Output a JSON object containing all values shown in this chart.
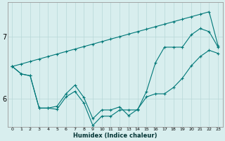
{
  "title": "",
  "xlabel": "Humidex (Indice chaleur)",
  "background_color": "#d8eeee",
  "grid_color": "#b8d8d8",
  "line_color": "#007878",
  "ylim": [
    5.55,
    7.55
  ],
  "yticks": [
    6,
    7
  ],
  "xlim": [
    -0.5,
    23.5
  ],
  "x_ticks": [
    0,
    1,
    2,
    3,
    4,
    5,
    6,
    7,
    8,
    9,
    10,
    11,
    12,
    13,
    14,
    15,
    16,
    17,
    18,
    19,
    20,
    21,
    22,
    23
  ],
  "line2": [
    6.52,
    6.4,
    6.37,
    5.85,
    5.85,
    5.88,
    6.08,
    6.22,
    6.02,
    5.68,
    5.82,
    5.82,
    5.87,
    5.73,
    5.83,
    6.03,
    6.08,
    6.08,
    6.18,
    6.33,
    6.53,
    6.68,
    6.78,
    6.73
  ],
  "line3": [
    6.52,
    6.4,
    6.37,
    5.85,
    5.85,
    5.83,
    6.03,
    6.12,
    5.93,
    5.57,
    5.72,
    5.72,
    5.82,
    5.82,
    5.82,
    6.12,
    6.58,
    6.83,
    6.83,
    6.83,
    7.03,
    7.13,
    7.08,
    6.83
  ],
  "line_straight": [
    6.52,
    6.56,
    6.6,
    6.64,
    6.68,
    6.72,
    6.76,
    6.8,
    6.84,
    6.88,
    6.92,
    6.96,
    7.0,
    7.04,
    7.08,
    7.12,
    7.16,
    7.2,
    7.24,
    7.28,
    7.32,
    7.36,
    7.4,
    6.85
  ]
}
